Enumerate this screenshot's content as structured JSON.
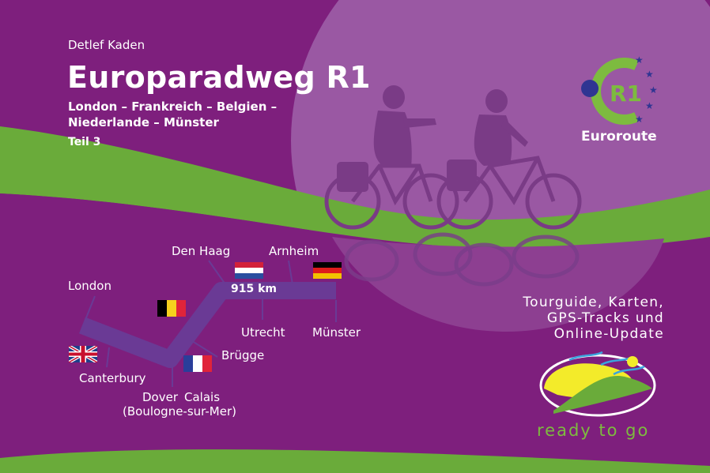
{
  "cover": {
    "author": "Detlef Kaden",
    "title": "Europaradweg R1",
    "subtitle_line1": "London – Frankreich – Belgien –",
    "subtitle_line2": "Niederlande – Münster",
    "volume": "Teil 3"
  },
  "badge": {
    "logo_text": "R1",
    "label": "Euroroute"
  },
  "map": {
    "distance": "915 km",
    "cities": {
      "london": "London",
      "canterbury": "Canterbury",
      "dover": "Dover",
      "calais": "Calais",
      "boulogne": "(Boulogne-sur-Mer)",
      "brugge": "Brügge",
      "den_haag": "Den Haag",
      "arnheim": "Arnheim",
      "utrecht": "Utrecht",
      "munster": "Münster"
    },
    "flags": [
      "uk-flag",
      "france-flag",
      "belgium-flag",
      "netherlands-flag",
      "germany-flag"
    ]
  },
  "features": {
    "line1": "Tourguide, Karten,",
    "line2": "GPS-Tracks und",
    "line3": "Online-Update"
  },
  "brand": {
    "slogan": "ready to go"
  },
  "colors": {
    "background": "#7e1f7d",
    "moon": "#9a58a3",
    "green": "#6aab3a",
    "route": "#6a3a95",
    "yellow": "#f3eb2a"
  }
}
